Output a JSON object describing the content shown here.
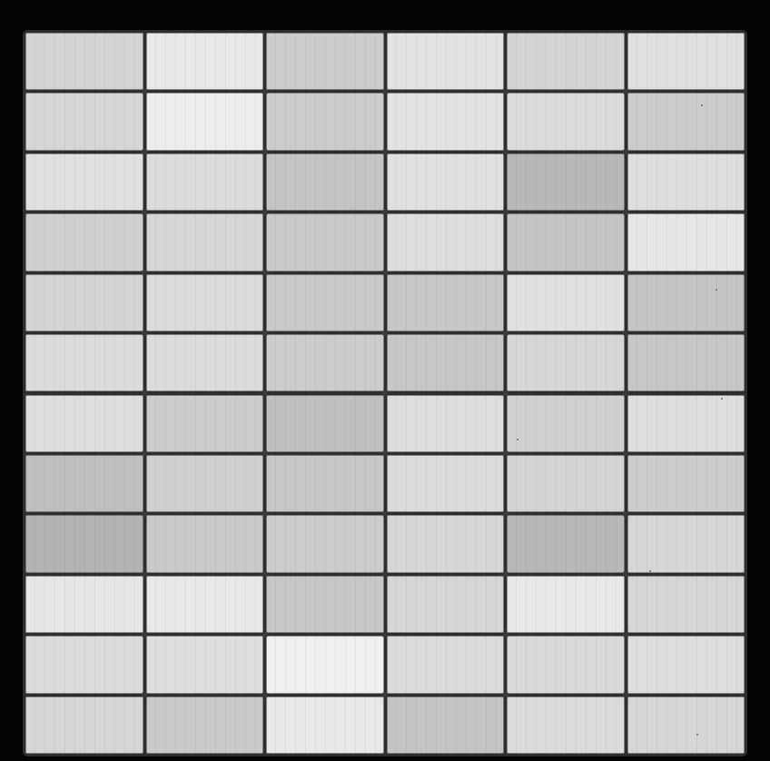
{
  "image": {
    "subject": "electroluminescence-panel-grid",
    "background_color": "#000000"
  },
  "panel": {
    "columns": 6,
    "rows": 12,
    "cell_brightness": [
      [
        0.83,
        0.91,
        0.8,
        0.89,
        0.83,
        0.88
      ],
      [
        0.84,
        0.93,
        0.8,
        0.89,
        0.86,
        0.8
      ],
      [
        0.88,
        0.86,
        0.77,
        0.88,
        0.72,
        0.87
      ],
      [
        0.81,
        0.84,
        0.79,
        0.87,
        0.77,
        0.9
      ],
      [
        0.83,
        0.86,
        0.79,
        0.78,
        0.88,
        0.77
      ],
      [
        0.86,
        0.86,
        0.8,
        0.78,
        0.84,
        0.78
      ],
      [
        0.87,
        0.8,
        0.75,
        0.87,
        0.82,
        0.87
      ],
      [
        0.75,
        0.81,
        0.78,
        0.86,
        0.83,
        0.8
      ],
      [
        0.7,
        0.79,
        0.8,
        0.84,
        0.72,
        0.84
      ],
      [
        0.9,
        0.91,
        0.78,
        0.84,
        0.91,
        0.84
      ],
      [
        0.86,
        0.87,
        0.94,
        0.86,
        0.85,
        0.87
      ],
      [
        0.84,
        0.79,
        0.91,
        0.77,
        0.86,
        0.84
      ]
    ]
  }
}
